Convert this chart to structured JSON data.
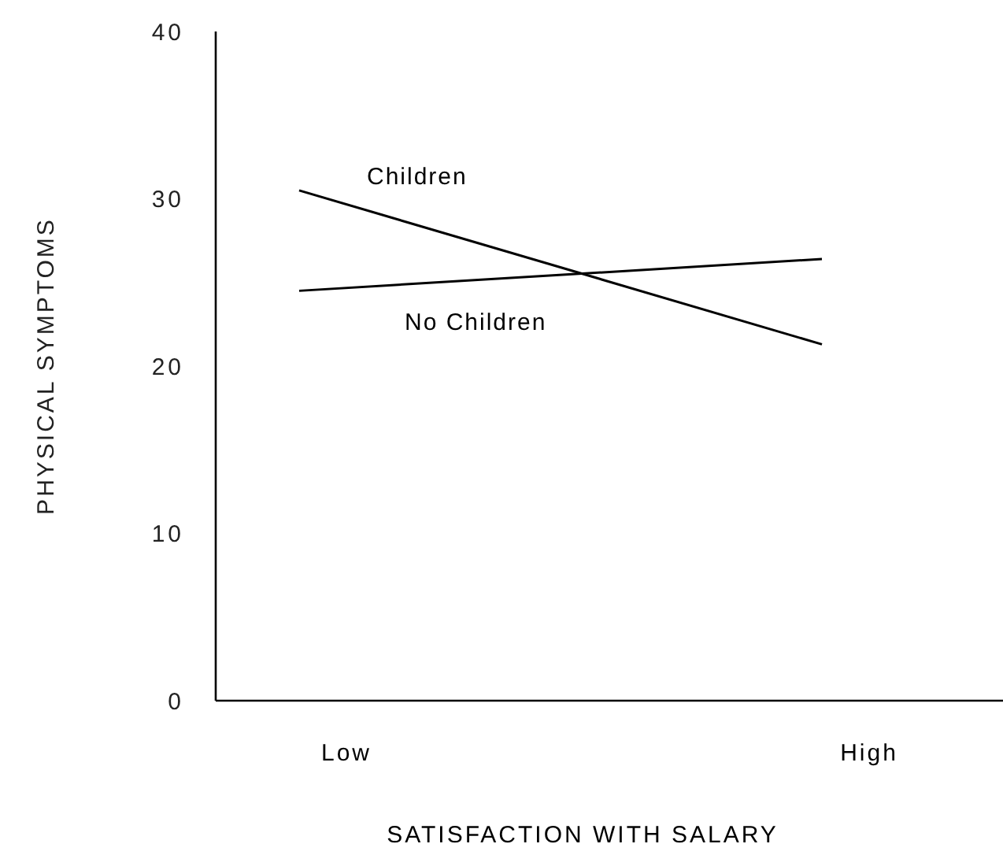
{
  "chart_data": {
    "type": "line",
    "xlabel": "SATISFACTION WITH SALARY",
    "ylabel": "PHYSICAL SYMPTOMS",
    "categories": [
      "Low",
      "High"
    ],
    "series": [
      {
        "name": "Children",
        "color": "#000000",
        "values": [
          30.5,
          21.3
        ]
      },
      {
        "name": "No Children",
        "color": "#000000",
        "values": [
          24.5,
          26.4
        ]
      }
    ],
    "ylim": [
      0,
      40
    ],
    "yticks": [
      0,
      10,
      20,
      30,
      40
    ],
    "grid": false,
    "legend": false,
    "marker": "none",
    "line_style": "solid"
  }
}
